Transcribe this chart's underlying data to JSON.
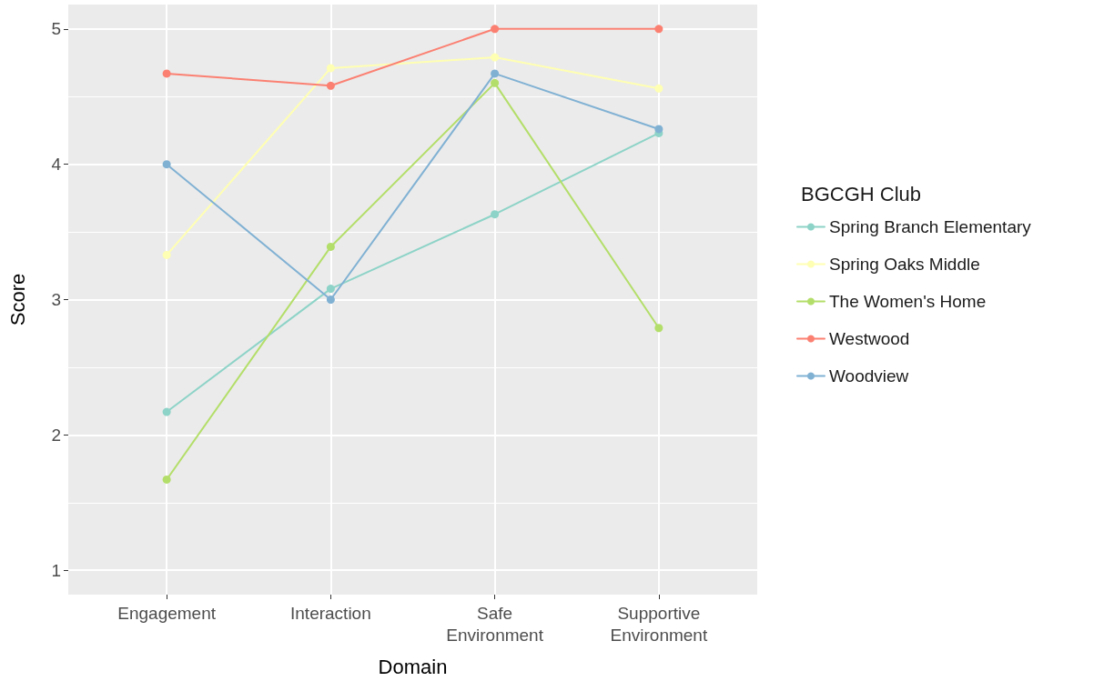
{
  "chart_data": {
    "type": "line",
    "xlabel": "Domain",
    "ylabel": "Score",
    "legend_title": "BGCGH Club",
    "categories": [
      "Engagement",
      "Interaction",
      "Safe Environment",
      "Supportive Environment"
    ],
    "series": [
      {
        "name": "Spring Branch Elementary",
        "color": "#8dd3c7",
        "values": [
          2.17,
          3.08,
          3.63,
          4.23
        ]
      },
      {
        "name": "Spring Oaks Middle",
        "color": "#ffffb3",
        "values": [
          3.33,
          4.71,
          4.79,
          4.56
        ]
      },
      {
        "name": "The Women's Home",
        "color": "#b3de69",
        "values": [
          1.67,
          3.39,
          4.6,
          2.79
        ]
      },
      {
        "name": "Westwood",
        "color": "#fb8072",
        "values": [
          4.67,
          4.58,
          5,
          5
        ]
      },
      {
        "name": "Woodview",
        "color": "#80b1d3",
        "values": [
          4,
          3,
          4.67,
          4.26
        ]
      }
    ],
    "ylim": [
      0.82,
      5.18
    ],
    "yticks": [
      1,
      2,
      3,
      4,
      5
    ],
    "grid": true,
    "legend": "right",
    "marker": "circle",
    "line_style": "solid"
  }
}
